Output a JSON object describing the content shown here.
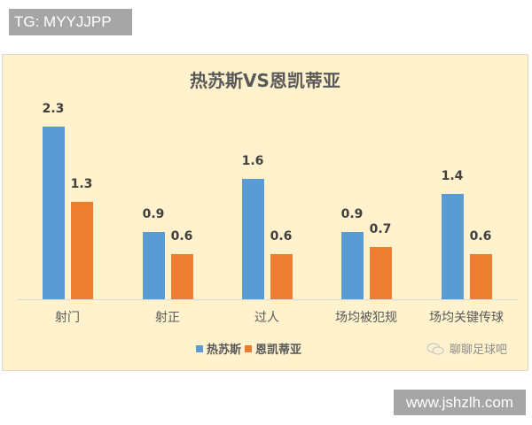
{
  "watermarks": {
    "top": "TG: MYYJJPP",
    "bottom": "www.jshzlh.com"
  },
  "branding": {
    "icon": "wechat-icon",
    "text": "聊聊足球吧"
  },
  "colors": {
    "panel_bg": "#fff2cc",
    "series0": "#5b9bd5",
    "series1": "#ed7d31",
    "title": "#595959"
  },
  "chart_data": {
    "type": "bar",
    "title": "热苏斯VS恩凯蒂亚",
    "xlabel": "",
    "ylabel": "",
    "categories": [
      "射门",
      "射正",
      "过人",
      "场均被犯规",
      "场均关键传球"
    ],
    "series": [
      {
        "name": "热苏斯",
        "color": "#5b9bd5",
        "values": [
          2.3,
          0.9,
          1.6,
          0.9,
          1.4
        ]
      },
      {
        "name": "恩凯蒂亚",
        "color": "#ed7d31",
        "values": [
          1.3,
          0.6,
          0.6,
          0.7,
          0.6
        ]
      }
    ],
    "ylim": [
      0,
      2.5
    ],
    "grid": false,
    "data_labels": true,
    "legend_position": "bottom"
  }
}
